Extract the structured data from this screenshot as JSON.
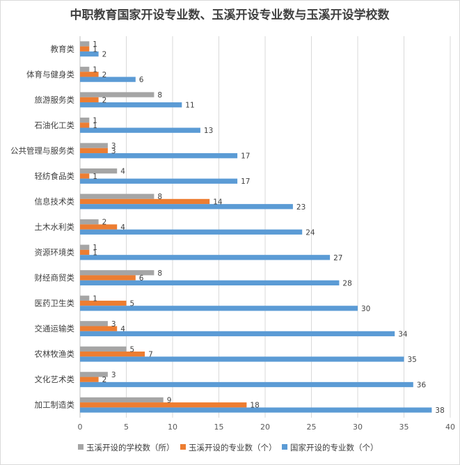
{
  "chart_data": {
    "type": "bar",
    "orientation": "horizontal",
    "title": "中职教育国家开设专业数、玉溪开设专业数与玉溪开设学校数",
    "categories": [
      "教育类",
      "体育与健身类",
      "旅游服务类",
      "石油化工类",
      "公共管理与服务类",
      "轻纺食品类",
      "信息技术类",
      "土木水利类",
      "资源环境类",
      "财经商贸类",
      "医药卫生类",
      "交通运输类",
      "农林牧渔类",
      "文化艺术类",
      "加工制造类"
    ],
    "series": [
      {
        "name": "玉溪开设的学校数（所）",
        "color": "#a5a5a5",
        "values": [
          1,
          1,
          8,
          1,
          3,
          4,
          8,
          2,
          1,
          8,
          1,
          3,
          5,
          3,
          9
        ]
      },
      {
        "name": "玉溪开设的专业数（个）",
        "color": "#ed7d31",
        "values": [
          1,
          2,
          2,
          1,
          3,
          1,
          14,
          4,
          1,
          6,
          5,
          4,
          7,
          2,
          18
        ]
      },
      {
        "name": "国家开设的专业数（个）",
        "color": "#5b9bd5",
        "values": [
          2,
          6,
          11,
          13,
          17,
          17,
          23,
          24,
          27,
          28,
          30,
          34,
          35,
          36,
          38
        ]
      }
    ],
    "xlim": [
      0,
      40
    ],
    "xticks": [
      0,
      5,
      10,
      15,
      20,
      25,
      30,
      35,
      40
    ],
    "grid": true,
    "legend": "bottom"
  }
}
